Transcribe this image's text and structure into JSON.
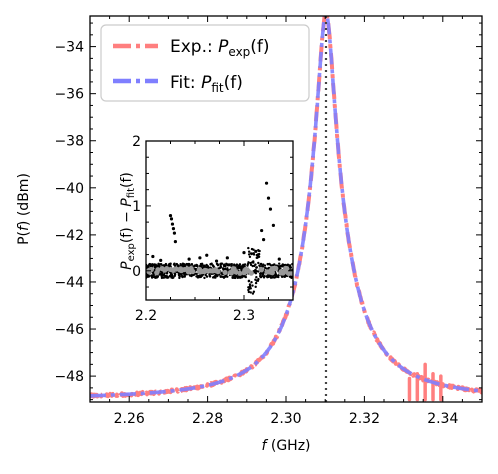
{
  "chart_data": [
    {
      "type": "line",
      "panel": "main",
      "xlabel_var": "f",
      "xlabel_unit": " (GHz)",
      "ylabel_prefix": "P(",
      "ylabel_var": "f",
      "ylabel_suffix": ") (dBm)",
      "xlim": [
        2.25,
        2.35
      ],
      "ylim": [
        -49.1,
        -32.7
      ],
      "x_ticks": [
        2.26,
        2.28,
        2.3,
        2.32,
        2.34
      ],
      "x_tick_labels": [
        "2.26",
        "2.28",
        "2.30",
        "2.32",
        "2.34"
      ],
      "y_ticks": [
        -34,
        -36,
        -38,
        -40,
        -42,
        -44,
        -46,
        -48
      ],
      "y_tick_labels": [
        "−34",
        "−36",
        "−38",
        "−40",
        "−42",
        "−44",
        "−46",
        "−48"
      ],
      "resonance_line_x": 2.3102,
      "legend_position": "top-left",
      "series": [
        {
          "name": "Exp.: P_exp(f)",
          "legend_main": "Exp.: ",
          "legend_var": "P",
          "legend_sub": "exp",
          "legend_arg": "(f)",
          "color": "#ff7f7f",
          "style": "dashdot",
          "model": {
            "f0": 2.3102,
            "gamma": 0.0018,
            "peak": -32.6,
            "floor": -49.0
          },
          "spikes": [
            {
              "x": 2.3315,
              "y": -48.1
            },
            {
              "x": 2.3335,
              "y": -47.9
            },
            {
              "x": 2.3355,
              "y": -47.5
            },
            {
              "x": 2.3375,
              "y": -47.9
            },
            {
              "x": 2.3395,
              "y": -48.0
            }
          ]
        },
        {
          "name": "Fit: P_fit(f)",
          "legend_main": "Fit: ",
          "legend_var": "P",
          "legend_sub": "fit",
          "legend_arg": "(f)",
          "color": "#7f7fff",
          "style": "dashdot",
          "model": {
            "f0": 2.3102,
            "gamma": 0.0018,
            "peak": -32.6,
            "floor": -49.0
          }
        }
      ]
    },
    {
      "type": "scatter",
      "panel": "inset",
      "xlim": [
        2.2,
        2.35
      ],
      "ylim": [
        -0.45,
        2.0
      ],
      "x_ticks": [
        2.2,
        2.3
      ],
      "x_tick_labels": [
        "2.2",
        "2.3"
      ],
      "y_ticks": [
        0,
        1,
        2
      ],
      "y_tick_labels": [
        "0",
        "1",
        "2"
      ],
      "ylabel": {
        "a": "P",
        "a_sub": "exp",
        "mid": "(f) − ",
        "b": "P",
        "b_sub": "fit",
        "end": "(f)"
      },
      "outliers": [
        {
          "x": 2.225,
          "y": 0.85
        },
        {
          "x": 2.226,
          "y": 0.8
        },
        {
          "x": 2.227,
          "y": 0.72
        },
        {
          "x": 2.228,
          "y": 0.65
        },
        {
          "x": 2.229,
          "y": 0.58
        },
        {
          "x": 2.23,
          "y": 0.45
        },
        {
          "x": 2.323,
          "y": 1.35
        },
        {
          "x": 2.325,
          "y": 1.12
        },
        {
          "x": 2.327,
          "y": 0.95
        },
        {
          "x": 2.33,
          "y": 0.7
        },
        {
          "x": 2.318,
          "y": 0.62
        },
        {
          "x": 2.32,
          "y": 0.48
        },
        {
          "x": 2.312,
          "y": 0.3
        },
        {
          "x": 2.207,
          "y": 0.22
        },
        {
          "x": 2.262,
          "y": 0.24
        },
        {
          "x": 2.244,
          "y": 0.18
        },
        {
          "x": 2.283,
          "y": 0.2
        },
        {
          "x": 2.3,
          "y": 0.28
        },
        {
          "x": 2.336,
          "y": 0.18
        },
        {
          "x": 2.215,
          "y": 0.16
        },
        {
          "x": 2.272,
          "y": 0.15
        },
        {
          "x": 2.255,
          "y": 0.2
        }
      ]
    }
  ]
}
